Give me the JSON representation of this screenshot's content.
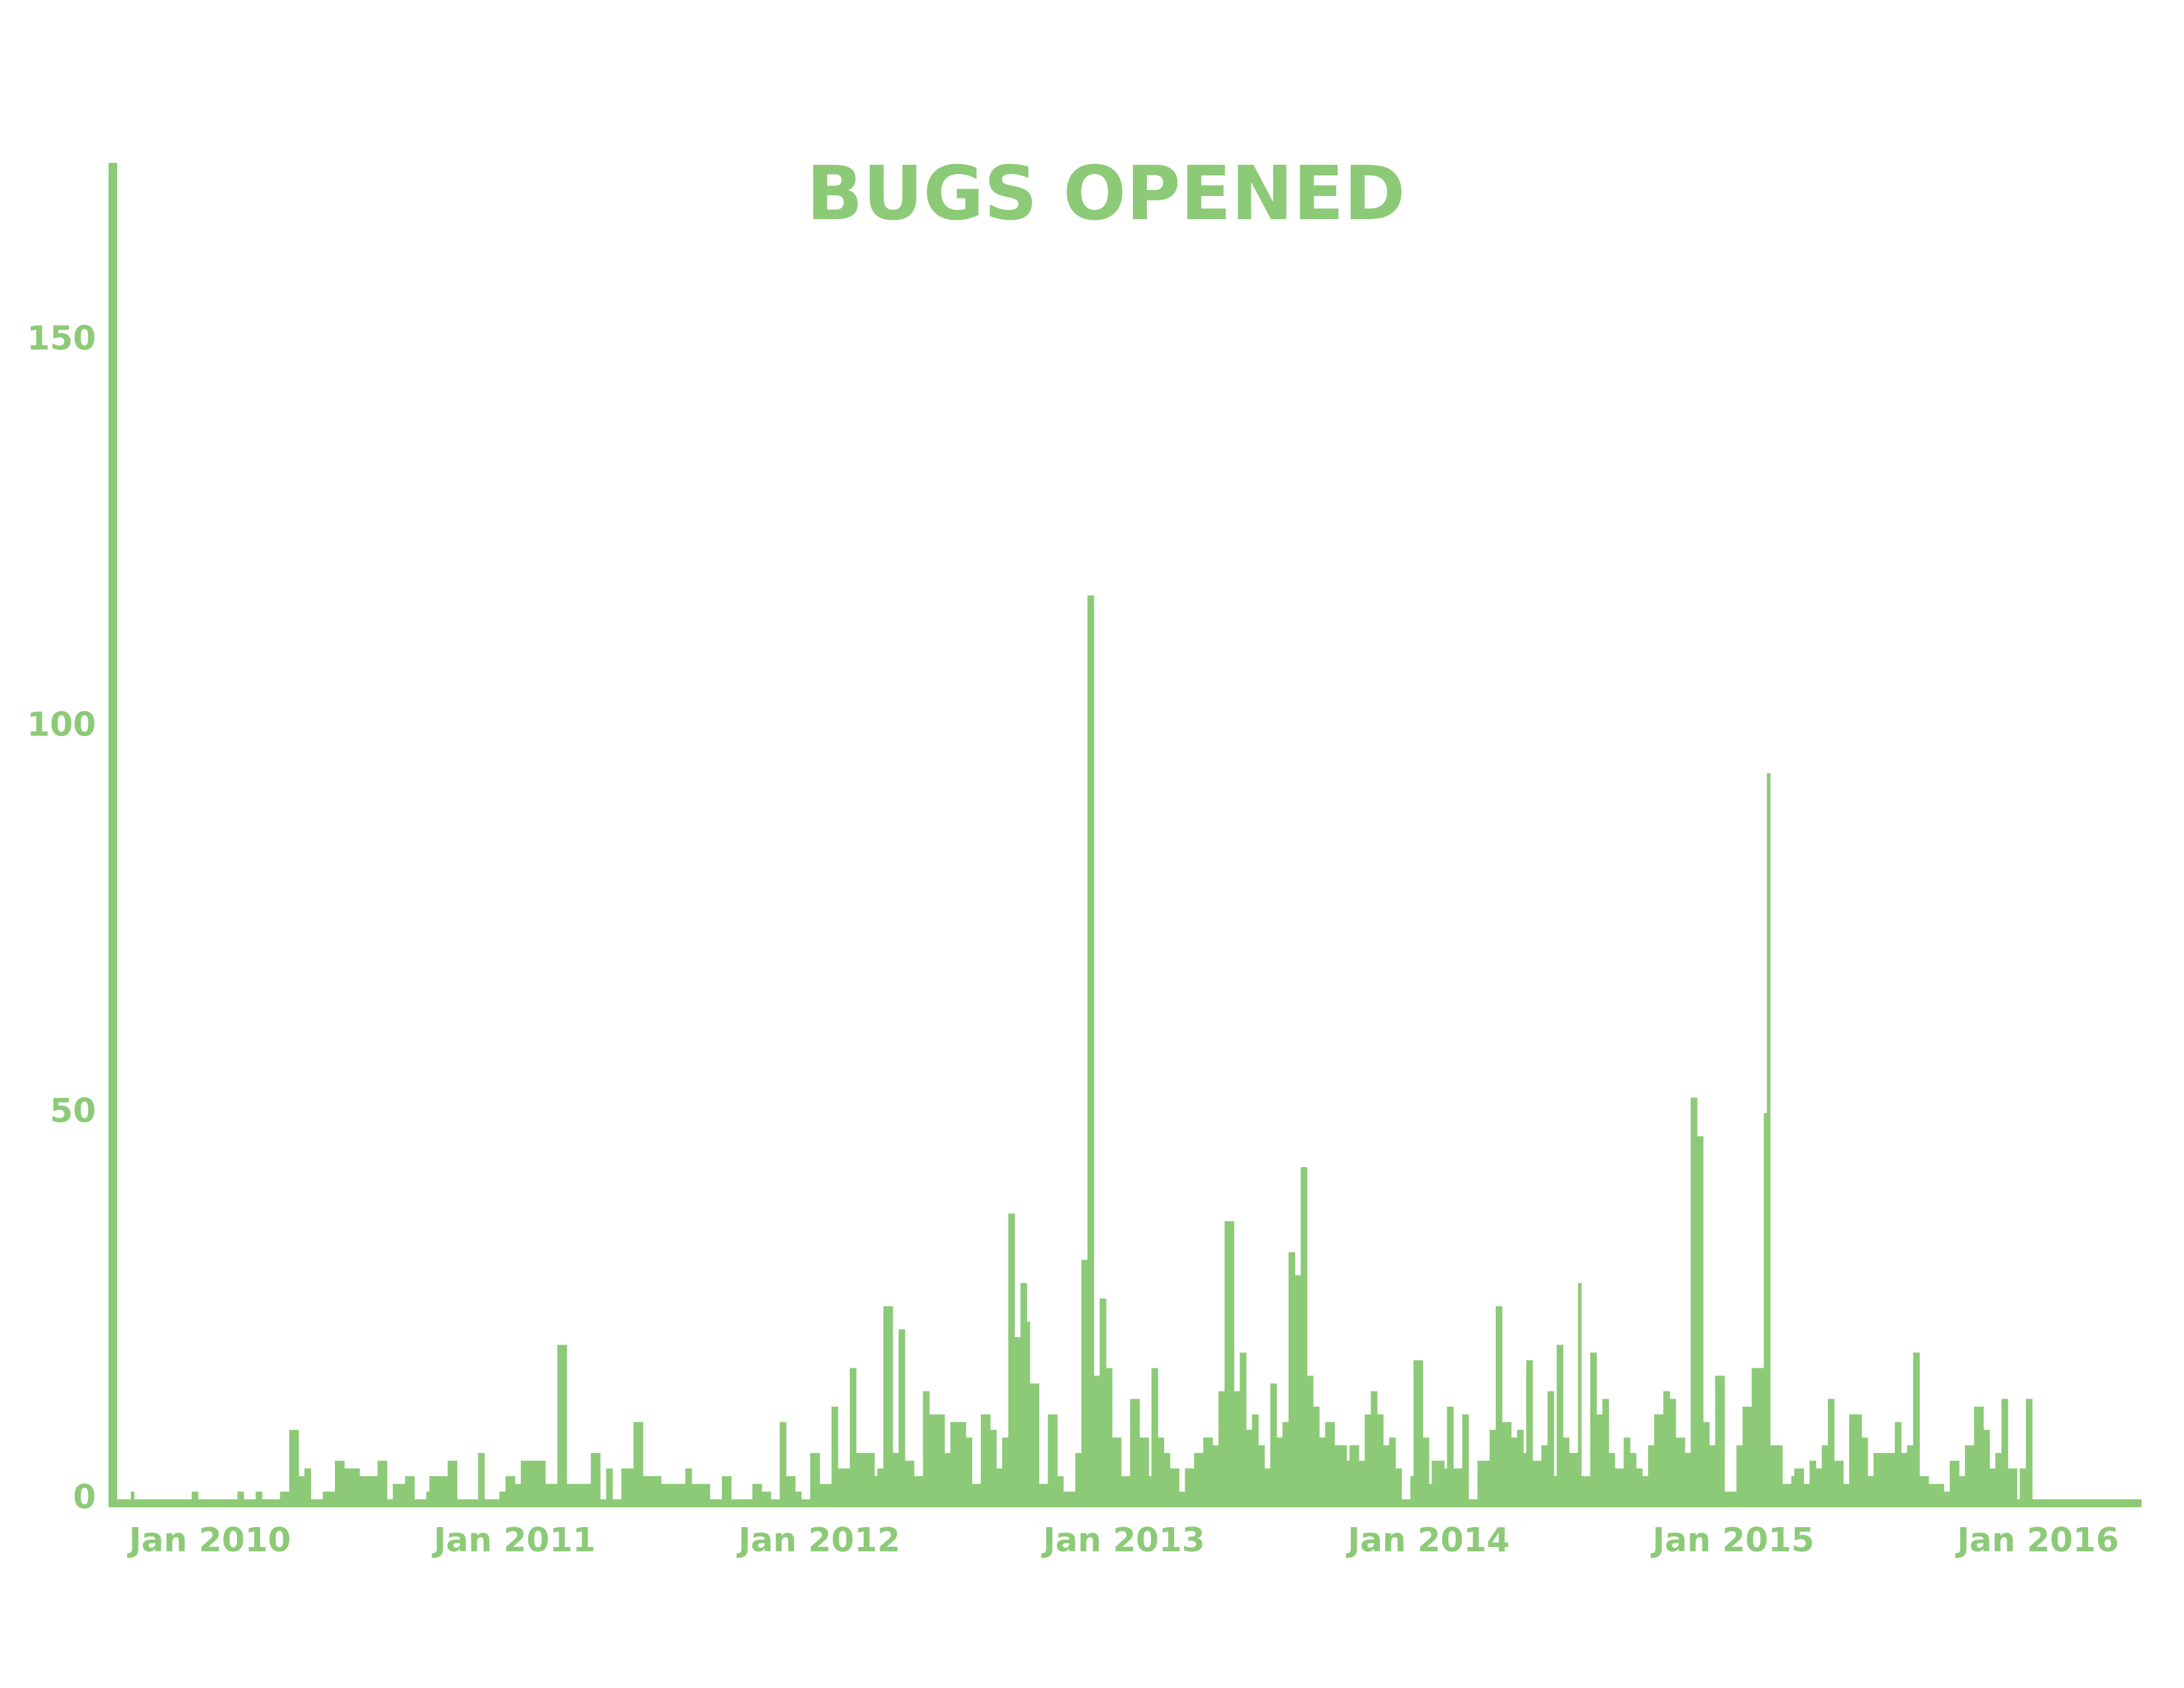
{
  "chart_data": {
    "type": "bar",
    "title": "BUGS OPENED",
    "color": "#8cca77",
    "x": [
      2009.7,
      2009.74,
      2009.75,
      2009.94,
      2009.96,
      2010.09,
      2010.11,
      2010.15,
      2010.17,
      2010.23,
      2010.26,
      2010.29,
      2010.31,
      2010.33,
      2010.37,
      2010.41,
      2010.44,
      2010.49,
      2010.55,
      2010.58,
      2010.6,
      2010.64,
      2010.67,
      2010.71,
      2010.72,
      2010.76,
      2010.78,
      2010.81,
      2010.88,
      2010.9,
      2010.95,
      2010.97,
      2011.0,
      2011.02,
      2011.06,
      2011.1,
      2011.14,
      2011.17,
      2011.21,
      2011.25,
      2011.28,
      2011.3,
      2011.32,
      2011.35,
      2011.39,
      2011.42,
      2011.48,
      2011.56,
      2011.58,
      2011.64,
      2011.68,
      2011.71,
      2011.78,
      2011.81,
      2011.84,
      2011.87,
      2011.89,
      2011.92,
      2011.94,
      2011.97,
      2012.0,
      2012.04,
      2012.06,
      2012.1,
      2012.12,
      2012.15,
      2012.18,
      2012.19,
      2012.21,
      2012.24,
      2012.26,
      2012.28,
      2012.31,
      2012.34,
      2012.36,
      2012.41,
      2012.43,
      2012.48,
      2012.5,
      2012.53,
      2012.56,
      2012.58,
      2012.6,
      2012.62,
      2012.64,
      2012.66,
      2012.68,
      2012.69,
      2012.72,
      2012.75,
      2012.78,
      2012.8,
      2012.84,
      2012.86,
      2012.88,
      2012.9,
      2012.92,
      2012.94,
      2012.96,
      2012.99,
      2013.02,
      2013.05,
      2013.08,
      2013.09,
      2013.11,
      2013.13,
      2013.15,
      2013.18,
      2013.2,
      2013.23,
      2013.26,
      2013.29,
      2013.31,
      2013.33,
      2013.36,
      2013.38,
      2013.4,
      2013.42,
      2013.44,
      2013.46,
      2013.48,
      2013.5,
      2013.52,
      2013.54,
      2013.56,
      2013.58,
      2013.6,
      2013.62,
      2013.64,
      2013.66,
      2013.69,
      2013.73,
      2013.74,
      2013.77,
      2013.79,
      2013.81,
      2013.83,
      2013.85,
      2013.87,
      2013.89,
      2013.91,
      2013.94,
      2013.95,
      2013.98,
      2014.0,
      2014.01,
      2014.05,
      2014.06,
      2014.08,
      2014.11,
      2014.13,
      2014.16,
      2014.2,
      2014.22,
      2014.24,
      2014.27,
      2014.29,
      2014.31,
      2014.32,
      2014.34,
      2014.37,
      2014.39,
      2014.41,
      2014.42,
      2014.44,
      2014.46,
      2014.49,
      2014.5,
      2014.53,
      2014.55,
      2014.57,
      2014.59,
      2014.61,
      2014.64,
      2014.66,
      2014.68,
      2014.7,
      2014.72,
      2014.74,
      2014.77,
      2014.79,
      2014.81,
      2014.84,
      2014.86,
      2014.88,
      2014.9,
      2014.92,
      2014.94,
      2014.97,
      2015.01,
      2015.03,
      2015.06,
      2015.1,
      2015.11,
      2015.12,
      2015.16,
      2015.19,
      2015.2,
      2015.23,
      2015.25,
      2015.27,
      2015.29,
      2015.31,
      2015.33,
      2015.36,
      2015.38,
      2015.42,
      2015.44,
      2015.46,
      2015.53,
      2015.55,
      2015.57,
      2015.59,
      2015.61,
      2015.64,
      2015.69,
      2015.71,
      2015.74,
      2015.76,
      2015.79,
      2015.82,
      2015.84,
      2015.86,
      2015.88,
      2015.9,
      2015.93,
      2015.94,
      2015.96,
      2015.98,
      2016.34
    ],
    "values": [
      0,
      1,
      0,
      1,
      0,
      1,
      0,
      1,
      0,
      1,
      9,
      3,
      4,
      0,
      1,
      5,
      4,
      3,
      5,
      0,
      2,
      3,
      0,
      1,
      3,
      3,
      5,
      0,
      6,
      0,
      1,
      3,
      2,
      5,
      5,
      2,
      20,
      2,
      2,
      6,
      0,
      4,
      0,
      4,
      10,
      3,
      2,
      4,
      2,
      0,
      3,
      0,
      2,
      1,
      0,
      10,
      3,
      1,
      0,
      6,
      2,
      12,
      4,
      17,
      6,
      6,
      3,
      4,
      25,
      6,
      22,
      5,
      3,
      14,
      11,
      6,
      10,
      8,
      2,
      11,
      9,
      4,
      8,
      37,
      21,
      28,
      23,
      15,
      2,
      11,
      3,
      1,
      6,
      31,
      117,
      16,
      26,
      17,
      8,
      3,
      13,
      8,
      3,
      17,
      8,
      6,
      4,
      1,
      4,
      6,
      8,
      7,
      14,
      36,
      14,
      19,
      9,
      11,
      7,
      4,
      15,
      8,
      10,
      32,
      29,
      43,
      16,
      12,
      8,
      10,
      7,
      5,
      7,
      5,
      11,
      14,
      11,
      7,
      8,
      4,
      0,
      3,
      18,
      8,
      2,
      5,
      4,
      12,
      4,
      11,
      0,
      5,
      9,
      25,
      10,
      8,
      9,
      6,
      18,
      5,
      7,
      14,
      3,
      20,
      8,
      6,
      28,
      3,
      19,
      11,
      13,
      6,
      4,
      8,
      6,
      4,
      3,
      7,
      11,
      14,
      13,
      8,
      6,
      52,
      47,
      10,
      7,
      16,
      1,
      7,
      12,
      17,
      50,
      94,
      7,
      2,
      3,
      4,
      2,
      5,
      4,
      7,
      13,
      5,
      2,
      11,
      8,
      3,
      6,
      10,
      6,
      7,
      19,
      3,
      2,
      1,
      5,
      3,
      7,
      12,
      9,
      4,
      6,
      13,
      4,
      0,
      4,
      13,
      0,
      0
    ],
    "xlim": [
      2009.68,
      2016.34
    ],
    "ylim": [
      0,
      173
    ],
    "xticks": [
      {
        "value": 2010,
        "label": "Jan 2010"
      },
      {
        "value": 2011,
        "label": "Jan 2011"
      },
      {
        "value": 2012,
        "label": "Jan 2012"
      },
      {
        "value": 2013,
        "label": "Jan 2013"
      },
      {
        "value": 2014,
        "label": "Jan 2014"
      },
      {
        "value": 2015,
        "label": "Jan 2015"
      },
      {
        "value": 2016,
        "label": "Jan 2016"
      }
    ],
    "yticks": [
      0,
      50,
      100,
      150
    ],
    "grid": false
  }
}
